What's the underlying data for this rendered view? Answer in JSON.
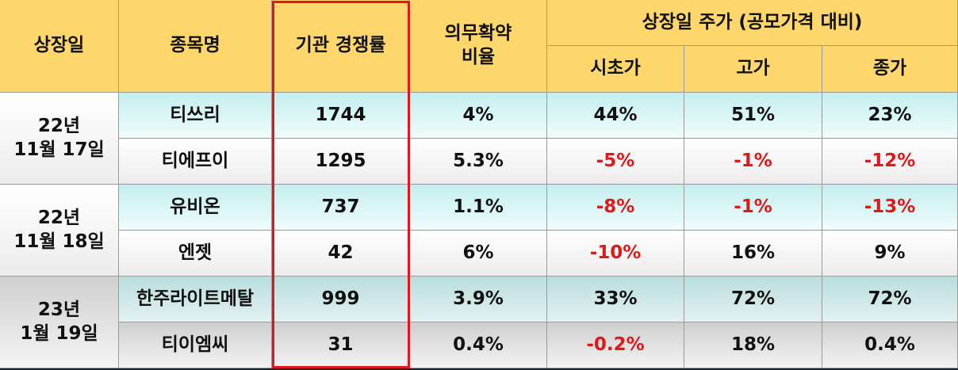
{
  "header": {
    "columns": [
      "상장일",
      "종목명",
      "기관 경쟁률",
      "의무확약\n비율"
    ],
    "price_group": "상장일 주가 (공모가격 대비)",
    "price_columns": [
      "시초가",
      "고가",
      "종가"
    ]
  },
  "groups": [
    {
      "date": "22년\n11월 17일",
      "rows": [
        {
          "name": "티쓰리",
          "competition": "1744",
          "lockup": "4%",
          "open": "44%",
          "high": "51%",
          "close": "23%"
        },
        {
          "name": "티에프이",
          "competition": "1295",
          "lockup": "5.3%",
          "open": "-5%",
          "high": "-1%",
          "close": "-12%"
        }
      ]
    },
    {
      "date": "22년\n11월 18일",
      "rows": [
        {
          "name": "유비온",
          "competition": "737",
          "lockup": "1.1%",
          "open": "-8%",
          "high": "-1%",
          "close": "-13%"
        },
        {
          "name": "엔젯",
          "competition": "42",
          "lockup": "6%",
          "open": "-10%",
          "high": "16%",
          "close": "9%"
        }
      ]
    },
    {
      "date": "23년\n1월 19일",
      "rows": [
        {
          "name": "한주라이트메탈",
          "competition": "999",
          "lockup": "3.9%",
          "open": "33%",
          "high": "72%",
          "close": "72%"
        },
        {
          "name": "티이엠씨",
          "competition": "31",
          "lockup": "0.4%",
          "open": "-0.2%",
          "high": "18%",
          "close": "0.4%"
        }
      ]
    }
  ]
}
